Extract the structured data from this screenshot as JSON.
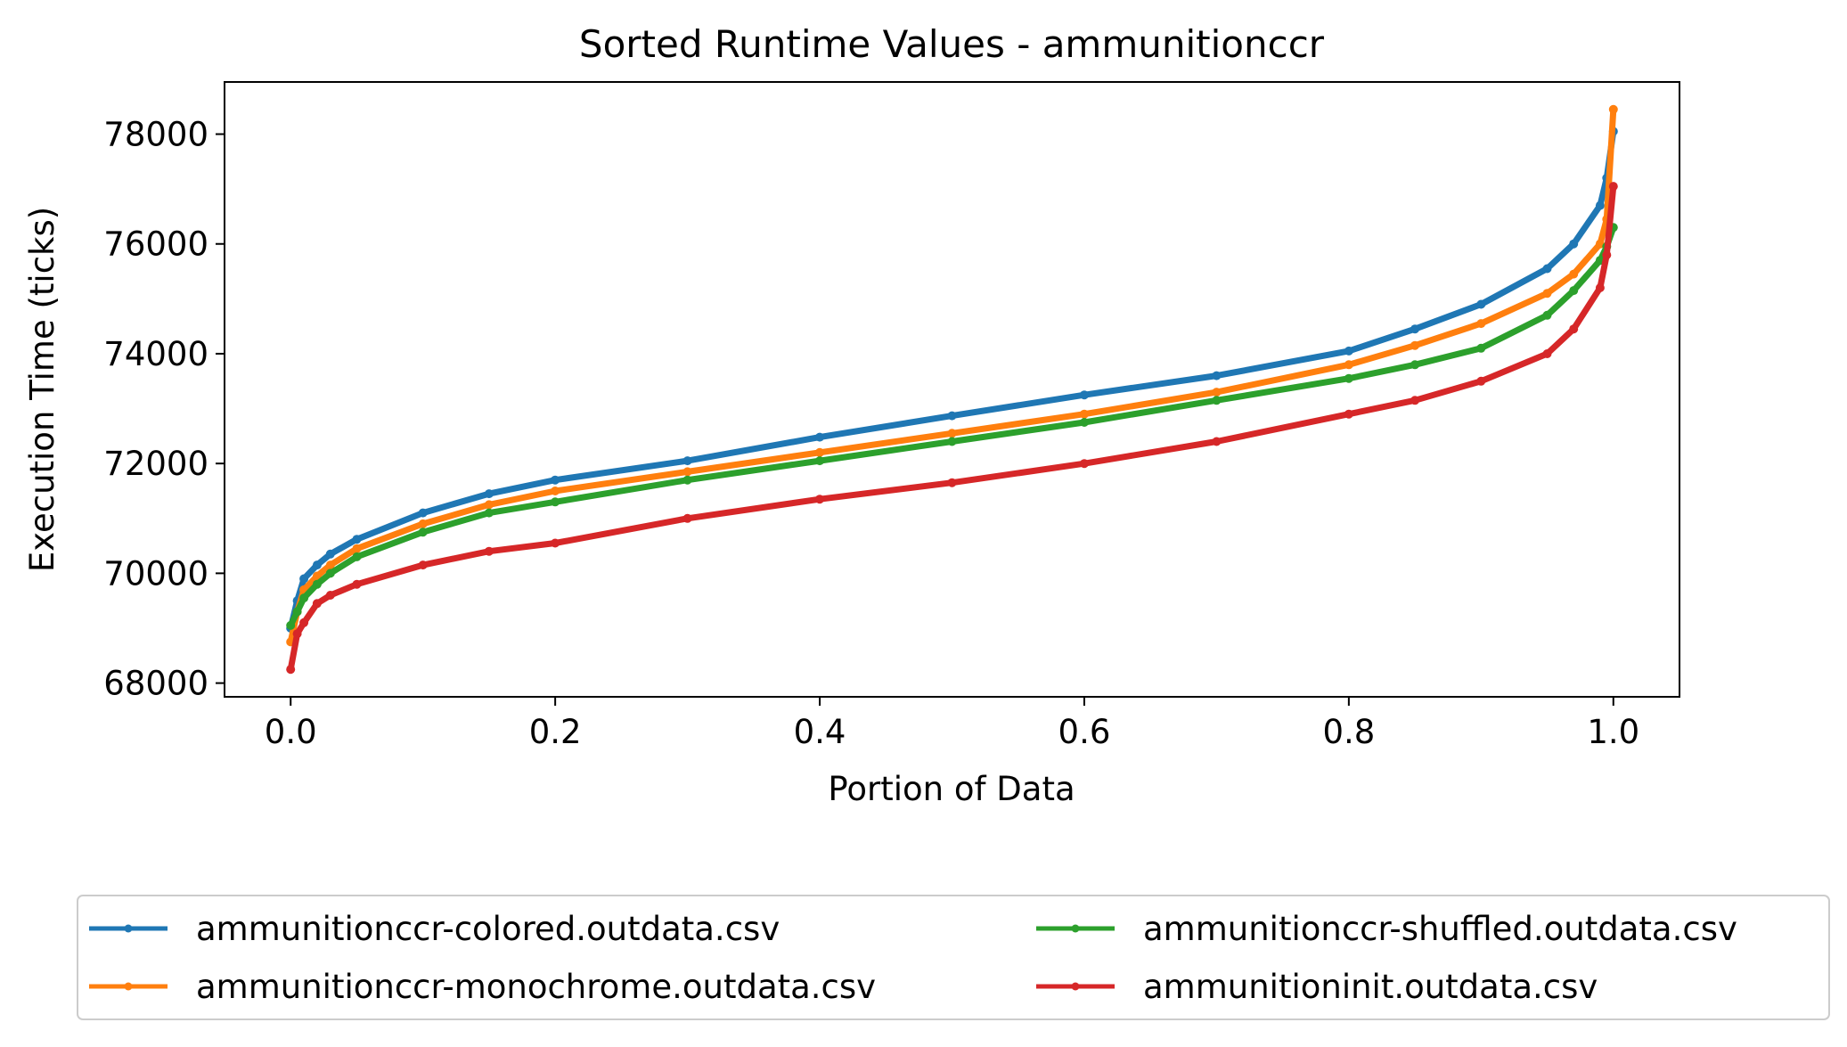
{
  "chart_data": {
    "type": "line",
    "title": "Sorted Runtime Values - ammunitionccr",
    "xlabel": "Portion of Data",
    "ylabel": "Execution Time (ticks)",
    "xlim": [
      -0.05,
      1.05
    ],
    "ylim": [
      67750,
      78950
    ],
    "xticks": [
      0.0,
      0.2,
      0.4,
      0.6,
      0.8,
      1.0
    ],
    "xtick_labels": [
      "0.0",
      "0.2",
      "0.4",
      "0.6",
      "0.8",
      "1.0"
    ],
    "yticks": [
      68000,
      70000,
      72000,
      74000,
      76000,
      78000
    ],
    "ytick_labels": [
      "68000",
      "70000",
      "72000",
      "74000",
      "76000",
      "78000"
    ],
    "grid": false,
    "legend_position": "bottom-outside",
    "legend_columns": 2,
    "x": [
      0.0,
      0.005,
      0.01,
      0.02,
      0.03,
      0.05,
      0.1,
      0.15,
      0.2,
      0.3,
      0.4,
      0.5,
      0.6,
      0.7,
      0.8,
      0.85,
      0.9,
      0.95,
      0.97,
      0.99,
      0.995,
      1.0
    ],
    "series": [
      {
        "name": "ammunitionccr-colored.outdata.csv",
        "color": "#1f77b4",
        "values": [
          69000,
          69500,
          69900,
          70150,
          70350,
          70620,
          71100,
          71450,
          71700,
          72050,
          72480,
          72870,
          73250,
          73600,
          74050,
          74450,
          74900,
          75550,
          76000,
          76700,
          77200,
          78050
        ]
      },
      {
        "name": "ammunitionccr-monochrome.outdata.csv",
        "color": "#ff7f0e",
        "values": [
          68750,
          69300,
          69700,
          69950,
          70150,
          70450,
          70900,
          71250,
          71500,
          71850,
          72200,
          72550,
          72900,
          73300,
          73800,
          74150,
          74550,
          75100,
          75450,
          76000,
          76450,
          78450
        ]
      },
      {
        "name": "ammunitionccr-shuffled.outdata.csv",
        "color": "#2ca02c",
        "values": [
          69050,
          69300,
          69550,
          69800,
          70000,
          70300,
          70750,
          71100,
          71300,
          71700,
          72050,
          72400,
          72750,
          73150,
          73550,
          73800,
          74100,
          74700,
          75150,
          75700,
          75950,
          76300
        ]
      },
      {
        "name": "ammunitioninit.outdata.csv",
        "color": "#d62728",
        "values": [
          68250,
          68900,
          69100,
          69450,
          69600,
          69800,
          70150,
          70400,
          70550,
          71000,
          71350,
          71650,
          72000,
          72400,
          72900,
          73150,
          73500,
          74000,
          74450,
          75200,
          75800,
          77050
        ]
      }
    ]
  }
}
